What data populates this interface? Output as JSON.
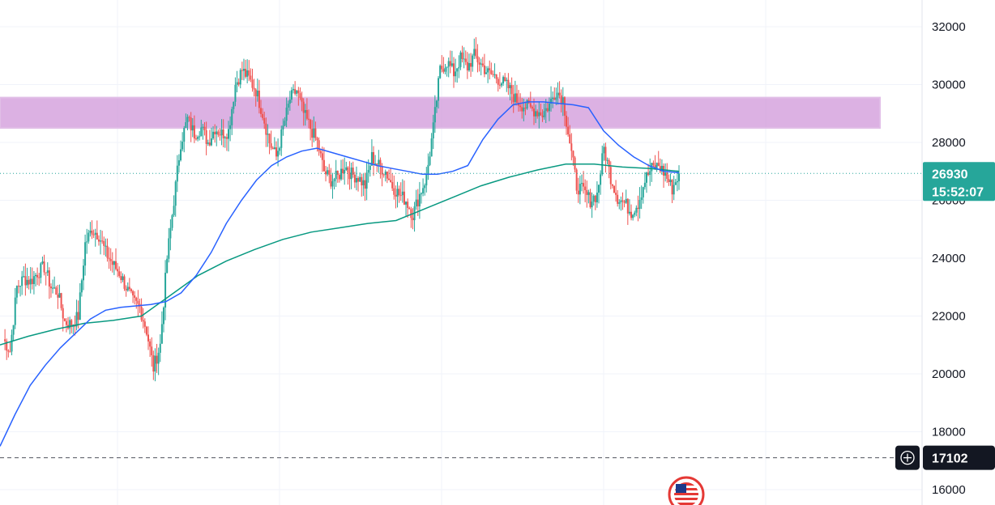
{
  "chart_data": {
    "type": "candlestick",
    "title": "",
    "xlabel": "",
    "ylabel": "",
    "ylim": [
      15500,
      32700
    ],
    "y_ticks": [
      16000,
      18000,
      20000,
      22000,
      24000,
      26000,
      28000,
      30000,
      32000
    ],
    "y_tick_labels": [
      "16000",
      "18000",
      "20000",
      "22000",
      "24000",
      "26000",
      "28000",
      "30000",
      "32000"
    ],
    "grid": true,
    "colors": {
      "up": "#26a69a",
      "down": "#ef5350",
      "ma_fast": "#2962ff",
      "ma_slow": "#089981",
      "zone": "#ce93d8",
      "price_badge": "#26a69a",
      "crosshair_badge": "#131722"
    },
    "price_series": [
      21200,
      20800,
      23000,
      23300,
      23200,
      23500,
      23700,
      23000,
      22800,
      21800,
      21700,
      22000,
      24500,
      25000,
      24800,
      24200,
      23800,
      23500,
      23000,
      22500,
      22300,
      21500,
      20200,
      21000,
      24000,
      26000,
      28000,
      28800,
      28300,
      28500,
      28000,
      28500,
      28300,
      28400,
      30000,
      30500,
      30200,
      29800,
      29000,
      28000,
      27500,
      28500,
      29500,
      29800,
      29000,
      28500,
      28000,
      27000,
      26700,
      26800,
      27200,
      26900,
      26800,
      26500,
      27500,
      27200,
      27000,
      26500,
      26200,
      26000,
      25500,
      26200,
      26800,
      28500,
      30500,
      30800,
      30400,
      30900,
      30600,
      31000,
      30700,
      30400,
      30300,
      30100,
      29900,
      29500,
      29300,
      29200,
      29100,
      29000,
      29300,
      29800,
      29500,
      28000,
      26500,
      26300,
      26000,
      26200,
      27800,
      26800,
      26100,
      25900,
      25600,
      25900,
      26700,
      27100,
      27200,
      26900,
      26400,
      26930
    ],
    "ma_fast": [
      17500,
      18600,
      19600,
      20300,
      20900,
      21400,
      21900,
      22200,
      22300,
      22350,
      22400,
      22500,
      22800,
      23400,
      24200,
      25200,
      26000,
      26700,
      27200,
      27500,
      27700,
      27800,
      27650,
      27500,
      27350,
      27200,
      27100,
      27000,
      26900,
      26900,
      27000,
      27200,
      28100,
      28800,
      29300,
      29400,
      29400,
      29350,
      29300,
      29200,
      28400,
      27900,
      27500,
      27200,
      27000,
      26950
    ],
    "ma_slow": [
      21000,
      21300,
      21550,
      21750,
      21850,
      22000,
      22700,
      23400,
      23900,
      24300,
      24650,
      24900,
      25050,
      25200,
      25300,
      25700,
      26100,
      26500,
      26800,
      27050,
      27250,
      27250,
      27150,
      27100,
      27000
    ],
    "resistance_zone": [
      28500,
      29550
    ],
    "current_price": {
      "value": "26930",
      "countdown": "15:52:07"
    },
    "crosshair_price": {
      "value": "17102"
    }
  }
}
